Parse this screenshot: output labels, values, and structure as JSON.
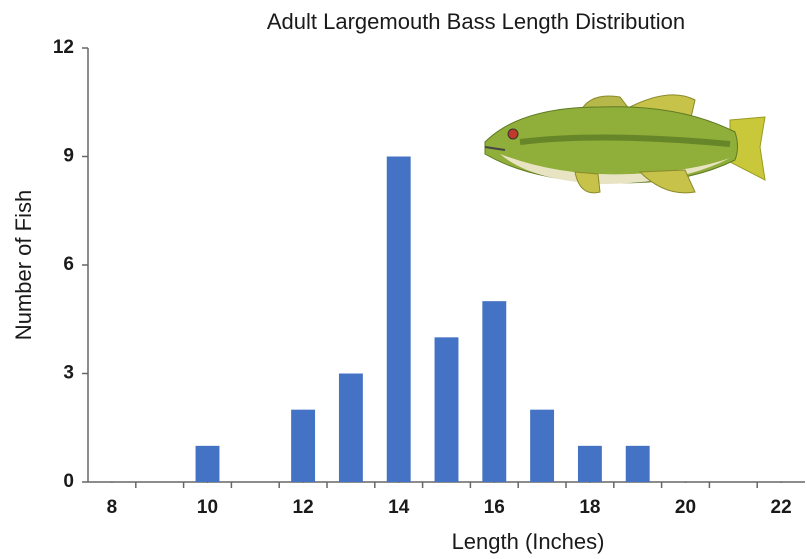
{
  "chart_data": {
    "type": "bar",
    "title": "Adult Largemouth Bass Length Distribution",
    "x_label": "Length (Inches)",
    "y_label": "Number of Fish",
    "x": [
      10,
      12,
      13,
      14,
      15,
      16,
      17,
      18,
      19
    ],
    "values": [
      1,
      2,
      3,
      9,
      4,
      5,
      2,
      1,
      1
    ],
    "color": "#4472c4",
    "xlim": [
      7.5,
      22.5
    ],
    "xticks": [
      8,
      10,
      12,
      14,
      16,
      18,
      20,
      22
    ],
    "ylim": [
      0,
      12
    ],
    "yticks": [
      0,
      3,
      6,
      9,
      12
    ],
    "grid": false
  }
}
